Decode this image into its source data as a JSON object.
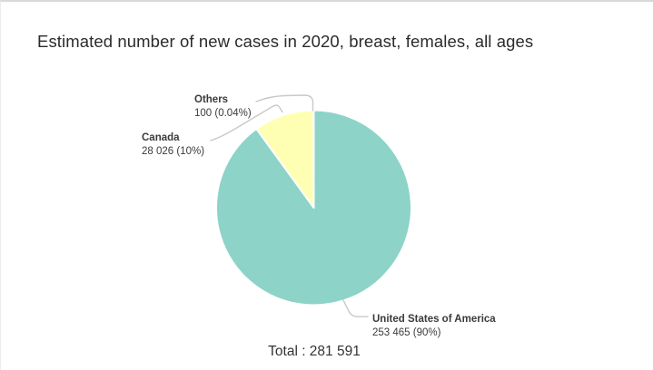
{
  "chart_data": {
    "type": "pie",
    "title": "Estimated number of new cases in 2020, breast, females, all ages",
    "total": 281591,
    "total_text": "Total : 281 591",
    "start_angle_deg": 0,
    "direction": "clockwise",
    "legend_position": "callout-labels",
    "slices": [
      {
        "label": "United States of America",
        "value": 253465,
        "value_text": "253 465 (90%)",
        "pct": 90,
        "color": "#8dd3c7"
      },
      {
        "label": "Canada",
        "value": 28026,
        "value_text": "28 026 (10%)",
        "pct": 10,
        "color": "#ffffb3"
      },
      {
        "label": "Others",
        "value": 100,
        "value_text": "100 (0.04%)",
        "pct": 0.04,
        "color": "#bebada"
      }
    ]
  },
  "style": {
    "leader_line_color": "#c9c9c9",
    "slice_stroke_color": "#ffffff",
    "text_color": "#3b3b3b"
  }
}
